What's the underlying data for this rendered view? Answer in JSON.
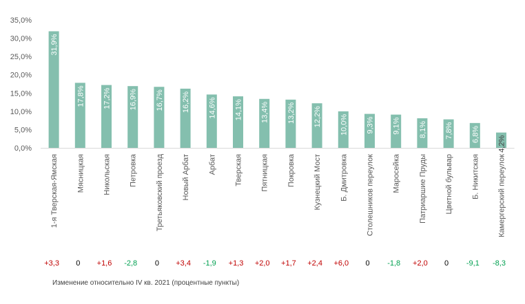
{
  "chart_data": {
    "type": "bar",
    "categories": [
      "1-я Тверская-Ямская",
      "Мясницкая",
      "Никольская",
      "Петровка",
      "Третьяковский проезд",
      "Новый Арбат",
      "Арбат",
      "Тверская",
      "Пятницкая",
      "Покровка",
      "Кузнецкий Мост",
      "Б. Дмитровка",
      "Столешников переулок",
      "Маросейка",
      "Патриаршие Пруды",
      "Цветной бульвар",
      "Б. Никитская",
      "Камергерский переулок"
    ],
    "values": [
      31.9,
      17.8,
      17.2,
      16.9,
      16.7,
      16.2,
      14.6,
      14.1,
      13.4,
      13.2,
      12.2,
      10.0,
      9.3,
      9.1,
      8.1,
      7.8,
      6.8,
      4.2
    ],
    "value_labels": [
      "31,9%",
      "17,8%",
      "17,2%",
      "16,9%",
      "16,7%",
      "16,2%",
      "14,6%",
      "14,1%",
      "13,4%",
      "13,2%",
      "12,2%",
      "10,0%",
      "9,3%",
      "9,1%",
      "8,1%",
      "7,8%",
      "6,8%",
      "4,2%"
    ],
    "ylim": [
      0,
      35
    ],
    "yticks": [
      0,
      5,
      10,
      15,
      20,
      25,
      30,
      35
    ],
    "ytick_labels": [
      "0,0%",
      "5,0%",
      "10,0%",
      "15,0%",
      "20,0%",
      "25,0%",
      "30,0%",
      "35,0%"
    ],
    "changes": [
      "+3,3",
      "0",
      "+1,6",
      "-2,8",
      "0",
      "+3,4",
      "-1,9",
      "+1,3",
      "+2,0",
      "+1,7",
      "+2,4",
      "+6,0",
      "0",
      "-1,8",
      "+2,0",
      "0",
      "-9,1",
      "-8,3"
    ],
    "grid": false,
    "colors": {
      "bar": "#84bfae",
      "value_label": "#ffffff",
      "value_label_outside": "#404040",
      "positive": "#c00000",
      "negative": "#00a050",
      "zero": "#000000",
      "axis_text": "#595959"
    }
  },
  "footnote": "Изменение относительно IV кв. 2021 (процентные пункты)"
}
